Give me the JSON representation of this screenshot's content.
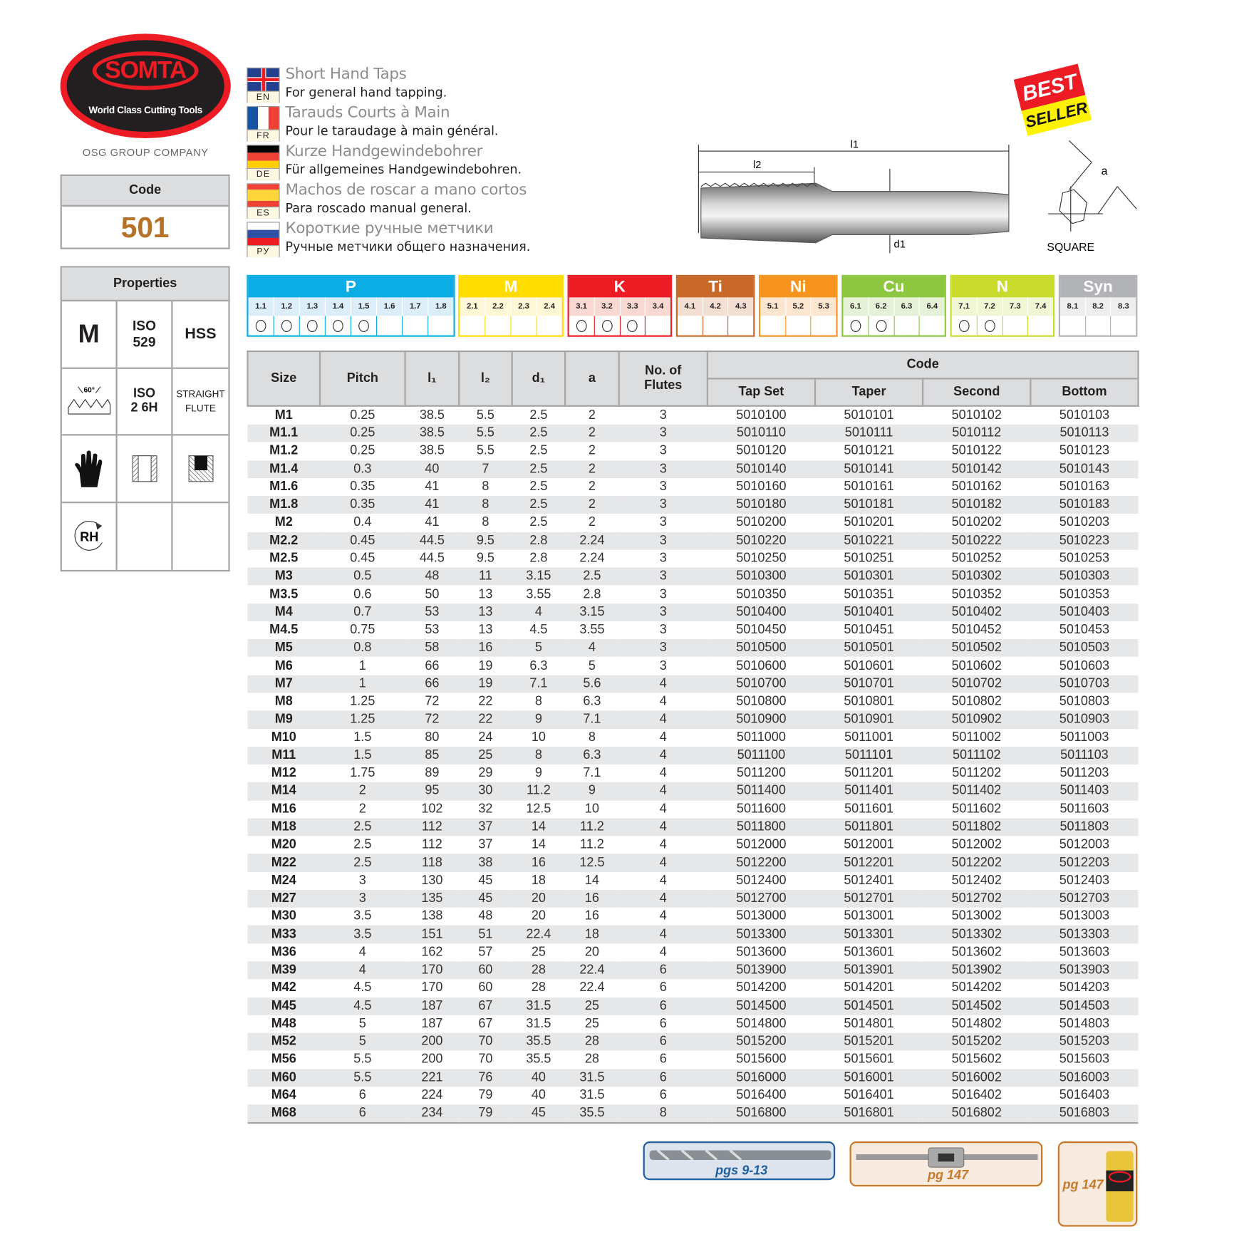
{
  "brand": {
    "name": "SOMTA",
    "tagline": "World Class Cutting Tools",
    "group": "OSG GROUP COMPANY"
  },
  "code_box": {
    "label": "Code",
    "value": "501"
  },
  "properties": {
    "label": "Properties",
    "cells": [
      "M",
      "ISO 529",
      "HSS",
      "60°",
      "ISO 2 6H",
      "STRAIGHT FLUTE",
      "",
      "",
      "",
      "RH",
      "",
      ""
    ],
    "icons": [
      "thread-profile-icon",
      "hand-tap-icon",
      "through-hole-icon",
      "blind-hole-icon",
      "right-hand-rotation-icon"
    ]
  },
  "languages": [
    {
      "code": "EN",
      "title": "Short Hand Taps",
      "subtitle": "For general hand tapping.",
      "flag": "uk"
    },
    {
      "code": "FR",
      "title": "Tarauds Courts à Main",
      "subtitle": "Pour le taraudage à main général.",
      "flag": "fr"
    },
    {
      "code": "DE",
      "title": "Kurze Handgewindebohrer",
      "subtitle": "Für allgemeines Handgewindebohren.",
      "flag": "de"
    },
    {
      "code": "ES",
      "title": "Machos de roscar a mano cortos",
      "subtitle": "Para roscado manual general.",
      "flag": "es"
    },
    {
      "code": "РУ",
      "title": "Короткие ручные метчики",
      "subtitle": "Ручные метчики общего назначения.",
      "flag": "ru"
    }
  ],
  "badge": {
    "line1": "BEST",
    "line2": "SELLER"
  },
  "diagram": {
    "l1": "l1",
    "l2": "l2",
    "d1": "d1",
    "a": "a",
    "square": "SQUARE"
  },
  "materials": [
    {
      "group": "P",
      "color": "#0aade4",
      "light": "#dbeefa",
      "subs": [
        "1.1",
        "1.2",
        "1.3",
        "1.4",
        "1.5",
        "1.6",
        "1.7",
        "1.8"
      ],
      "suitable": [
        1,
        1,
        1,
        1,
        1,
        0,
        0,
        0
      ]
    },
    {
      "group": "M",
      "color": "#ffdd00",
      "light": "#fff7d6",
      "subs": [
        "2.1",
        "2.2",
        "2.3",
        "2.4"
      ],
      "suitable": [
        0,
        0,
        0,
        0
      ]
    },
    {
      "group": "K",
      "color": "#ed1c24",
      "light": "#fbd9d3",
      "subs": [
        "3.1",
        "3.2",
        "3.3",
        "3.4"
      ],
      "suitable": [
        1,
        1,
        1,
        0
      ]
    },
    {
      "group": "Ti",
      "color": "#c8692a",
      "light": "#f4e0d3",
      "subs": [
        "4.1",
        "4.2",
        "4.3"
      ],
      "suitable": [
        0,
        0,
        0
      ]
    },
    {
      "group": "Ni",
      "color": "#f7941d",
      "light": "#fde6cf",
      "subs": [
        "5.1",
        "5.2",
        "5.3"
      ],
      "suitable": [
        0,
        0,
        0
      ]
    },
    {
      "group": "Cu",
      "color": "#8dc63f",
      "light": "#e6f2d8",
      "subs": [
        "6.1",
        "6.2",
        "6.3",
        "6.4"
      ],
      "suitable": [
        1,
        1,
        0,
        0
      ]
    },
    {
      "group": "N",
      "color": "#c9db2d",
      "light": "#f1f6d5",
      "subs": [
        "7.1",
        "7.2",
        "7.3",
        "7.4"
      ],
      "suitable": [
        1,
        1,
        0,
        0
      ]
    },
    {
      "group": "Syn",
      "color": "#b1b3b6",
      "light": "#eeeeef",
      "subs": [
        "8.1",
        "8.2",
        "8.3"
      ],
      "suitable": [
        0,
        0,
        0
      ]
    }
  ],
  "table": {
    "headers": {
      "size": "Size",
      "pitch": "Pitch",
      "l1": "l₁",
      "l2": "l₂",
      "d1": "d₁",
      "a": "a",
      "flutes": "No. of Flutes",
      "code": "Code",
      "tap_set": "Tap Set",
      "taper": "Taper",
      "second": "Second",
      "bottom": "Bottom"
    },
    "rows": [
      [
        "M1",
        "0.25",
        "38.5",
        "5.5",
        "2.5",
        "2",
        "3",
        "5010100",
        "5010101",
        "5010102",
        "5010103"
      ],
      [
        "M1.1",
        "0.25",
        "38.5",
        "5.5",
        "2.5",
        "2",
        "3",
        "5010110",
        "5010111",
        "5010112",
        "5010113"
      ],
      [
        "M1.2",
        "0.25",
        "38.5",
        "5.5",
        "2.5",
        "2",
        "3",
        "5010120",
        "5010121",
        "5010122",
        "5010123"
      ],
      [
        "M1.4",
        "0.3",
        "40",
        "7",
        "2.5",
        "2",
        "3",
        "5010140",
        "5010141",
        "5010142",
        "5010143"
      ],
      [
        "M1.6",
        "0.35",
        "41",
        "8",
        "2.5",
        "2",
        "3",
        "5010160",
        "5010161",
        "5010162",
        "5010163"
      ],
      [
        "M1.8",
        "0.35",
        "41",
        "8",
        "2.5",
        "2",
        "3",
        "5010180",
        "5010181",
        "5010182",
        "5010183"
      ],
      [
        "M2",
        "0.4",
        "41",
        "8",
        "2.5",
        "2",
        "3",
        "5010200",
        "5010201",
        "5010202",
        "5010203"
      ],
      [
        "M2.2",
        "0.45",
        "44.5",
        "9.5",
        "2.8",
        "2.24",
        "3",
        "5010220",
        "5010221",
        "5010222",
        "5010223"
      ],
      [
        "M2.5",
        "0.45",
        "44.5",
        "9.5",
        "2.8",
        "2.24",
        "3",
        "5010250",
        "5010251",
        "5010252",
        "5010253"
      ],
      [
        "M3",
        "0.5",
        "48",
        "11",
        "3.15",
        "2.5",
        "3",
        "5010300",
        "5010301",
        "5010302",
        "5010303"
      ],
      [
        "M3.5",
        "0.6",
        "50",
        "13",
        "3.55",
        "2.8",
        "3",
        "5010350",
        "5010351",
        "5010352",
        "5010353"
      ],
      [
        "M4",
        "0.7",
        "53",
        "13",
        "4",
        "3.15",
        "3",
        "5010400",
        "5010401",
        "5010402",
        "5010403"
      ],
      [
        "M4.5",
        "0.75",
        "53",
        "13",
        "4.5",
        "3.55",
        "3",
        "5010450",
        "5010451",
        "5010452",
        "5010453"
      ],
      [
        "M5",
        "0.8",
        "58",
        "16",
        "5",
        "4",
        "3",
        "5010500",
        "5010501",
        "5010502",
        "5010503"
      ],
      [
        "M6",
        "1",
        "66",
        "19",
        "6.3",
        "5",
        "3",
        "5010600",
        "5010601",
        "5010602",
        "5010603"
      ],
      [
        "M7",
        "1",
        "66",
        "19",
        "7.1",
        "5.6",
        "4",
        "5010700",
        "5010701",
        "5010702",
        "5010703"
      ],
      [
        "M8",
        "1.25",
        "72",
        "22",
        "8",
        "6.3",
        "4",
        "5010800",
        "5010801",
        "5010802",
        "5010803"
      ],
      [
        "M9",
        "1.25",
        "72",
        "22",
        "9",
        "7.1",
        "4",
        "5010900",
        "5010901",
        "5010902",
        "5010903"
      ],
      [
        "M10",
        "1.5",
        "80",
        "24",
        "10",
        "8",
        "4",
        "5011000",
        "5011001",
        "5011002",
        "5011003"
      ],
      [
        "M11",
        "1.5",
        "85",
        "25",
        "8",
        "6.3",
        "4",
        "5011100",
        "5011101",
        "5011102",
        "5011103"
      ],
      [
        "M12",
        "1.75",
        "89",
        "29",
        "9",
        "7.1",
        "4",
        "5011200",
        "5011201",
        "5011202",
        "5011203"
      ],
      [
        "M14",
        "2",
        "95",
        "30",
        "11.2",
        "9",
        "4",
        "5011400",
        "5011401",
        "5011402",
        "5011403"
      ],
      [
        "M16",
        "2",
        "102",
        "32",
        "12.5",
        "10",
        "4",
        "5011600",
        "5011601",
        "5011602",
        "5011603"
      ],
      [
        "M18",
        "2.5",
        "112",
        "37",
        "14",
        "11.2",
        "4",
        "5011800",
        "5011801",
        "5011802",
        "5011803"
      ],
      [
        "M20",
        "2.5",
        "112",
        "37",
        "14",
        "11.2",
        "4",
        "5012000",
        "5012001",
        "5012002",
        "5012003"
      ],
      [
        "M22",
        "2.5",
        "118",
        "38",
        "16",
        "12.5",
        "4",
        "5012200",
        "5012201",
        "5012202",
        "5012203"
      ],
      [
        "M24",
        "3",
        "130",
        "45",
        "18",
        "14",
        "4",
        "5012400",
        "5012401",
        "5012402",
        "5012403"
      ],
      [
        "M27",
        "3",
        "135",
        "45",
        "20",
        "16",
        "4",
        "5012700",
        "5012701",
        "5012702",
        "5012703"
      ],
      [
        "M30",
        "3.5",
        "138",
        "48",
        "20",
        "16",
        "4",
        "5013000",
        "5013001",
        "5013002",
        "5013003"
      ],
      [
        "M33",
        "3.5",
        "151",
        "51",
        "22.4",
        "18",
        "4",
        "5013300",
        "5013301",
        "5013302",
        "5013303"
      ],
      [
        "M36",
        "4",
        "162",
        "57",
        "25",
        "20",
        "4",
        "5013600",
        "5013601",
        "5013602",
        "5013603"
      ],
      [
        "M39",
        "4",
        "170",
        "60",
        "28",
        "22.4",
        "6",
        "5013900",
        "5013901",
        "5013902",
        "5013903"
      ],
      [
        "M42",
        "4.5",
        "170",
        "60",
        "28",
        "22.4",
        "6",
        "5014200",
        "5014201",
        "5014202",
        "5014203"
      ],
      [
        "M45",
        "4.5",
        "187",
        "67",
        "31.5",
        "25",
        "6",
        "5014500",
        "5014501",
        "5014502",
        "5014503"
      ],
      [
        "M48",
        "5",
        "187",
        "67",
        "31.5",
        "25",
        "6",
        "5014800",
        "5014801",
        "5014802",
        "5014803"
      ],
      [
        "M52",
        "5",
        "200",
        "70",
        "35.5",
        "28",
        "6",
        "5015200",
        "5015201",
        "5015202",
        "5015203"
      ],
      [
        "M56",
        "5.5",
        "200",
        "70",
        "35.5",
        "28",
        "6",
        "5015600",
        "5015601",
        "5015602",
        "5015603"
      ],
      [
        "M60",
        "5.5",
        "221",
        "76",
        "40",
        "31.5",
        "6",
        "5016000",
        "5016001",
        "5016002",
        "5016003"
      ],
      [
        "M64",
        "6",
        "224",
        "79",
        "40",
        "31.5",
        "6",
        "5016400",
        "5016401",
        "5016402",
        "5016403"
      ],
      [
        "M68",
        "6",
        "234",
        "79",
        "45",
        "35.5",
        "8",
        "5016800",
        "5016801",
        "5016802",
        "5016803"
      ]
    ]
  },
  "references": [
    {
      "label": "pgs 9-13",
      "item": "drill-icon",
      "color": "#1f5f9e"
    },
    {
      "label": "pg 147",
      "item": "tap-wrench-icon",
      "color": "#c8792a"
    },
    {
      "label": "pg 147",
      "item": "cutting-fluid-can-icon",
      "color": "#c8792a"
    }
  ]
}
